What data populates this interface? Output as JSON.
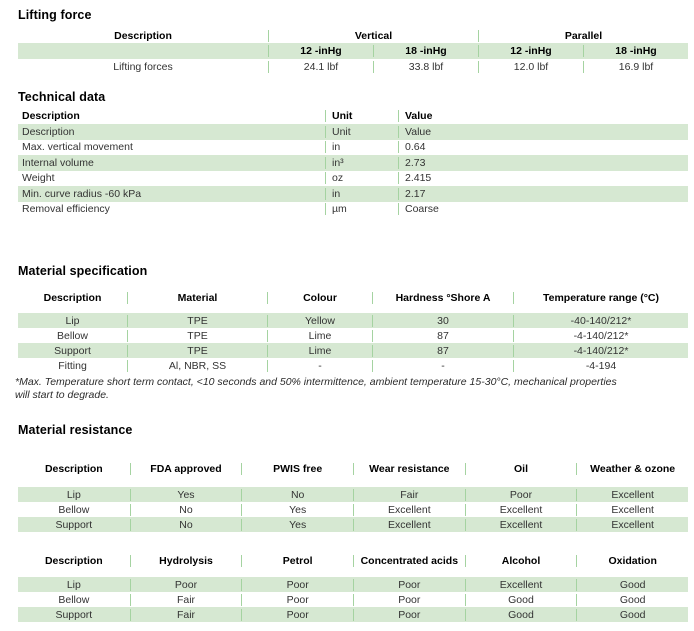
{
  "page": {
    "bg": "#ffffff",
    "band_green": "#d6e8d2",
    "line_green": "#a5d3a1",
    "text_color": "#333333"
  },
  "lifting_force": {
    "title": "Lifting force",
    "group_headers": [
      "Description",
      "Vertical",
      "Parallel"
    ],
    "sub_headers": [
      "",
      "12 -inHg",
      "18 -inHg",
      "12 -inHg",
      "18 -inHg"
    ],
    "rows": [
      {
        "cells": [
          "Lifting forces",
          "24.1 lbf",
          "33.8 lbf",
          "12.0 lbf",
          "16.9 lbf"
        ]
      }
    ]
  },
  "technical_data": {
    "title": "Technical data",
    "headers": [
      "Description",
      "Unit",
      "Value"
    ],
    "rows": [
      {
        "cells": [
          "Description",
          "Unit",
          "Value"
        ]
      },
      {
        "cells": [
          "Max. vertical movement",
          "in",
          "0.64"
        ]
      },
      {
        "cells": [
          "Internal volume",
          "in³",
          "2.73"
        ]
      },
      {
        "cells": [
          "Weight",
          "oz",
          "2.415"
        ]
      },
      {
        "cells": [
          "Min. curve radius -60 kPa",
          "in",
          "2.17"
        ]
      },
      {
        "cells": [
          "Removal efficiency",
          "µm",
          "Coarse"
        ]
      }
    ]
  },
  "material_specification": {
    "title": "Material specification",
    "headers": [
      "Description",
      "Material",
      "Colour",
      "Hardness °Shore A",
      "Temperature range (°C)"
    ],
    "rows": [
      {
        "cells": [
          "Lip",
          "TPE",
          "Yellow",
          "30",
          "-40-140/212*"
        ]
      },
      {
        "cells": [
          "Bellow",
          "TPE",
          "Lime",
          "87",
          "-4-140/212*"
        ]
      },
      {
        "cells": [
          "Support",
          "TPE",
          "Lime",
          "87",
          "-4-140/212*"
        ]
      },
      {
        "cells": [
          "Fitting",
          "Al, NBR, SS",
          "-",
          "-",
          "-4-194"
        ]
      }
    ],
    "footnote_line1": "*Max. Temperature short term contact, <10 seconds and 50% intermittence, ambient temperature 15-30°C, mechanical properties",
    "footnote_line2": "will start to degrade."
  },
  "material_resistance": {
    "title": "Material resistance",
    "table1": {
      "headers": [
        "Description",
        "FDA approved",
        "PWIS free",
        "Wear resistance",
        "Oil",
        "Weather & ozone"
      ],
      "rows": [
        {
          "cells": [
            "Lip",
            "Yes",
            "No",
            "Fair",
            "Poor",
            "Excellent"
          ]
        },
        {
          "cells": [
            "Bellow",
            "No",
            "Yes",
            "Excellent",
            "Excellent",
            "Excellent"
          ]
        },
        {
          "cells": [
            "Support",
            "No",
            "Yes",
            "Excellent",
            "Excellent",
            "Excellent"
          ]
        }
      ]
    },
    "table2": {
      "headers": [
        "Description",
        "Hydrolysis",
        "Petrol",
        "Concentrated acids",
        "Alcohol",
        "Oxidation"
      ],
      "rows": [
        {
          "cells": [
            "Lip",
            "Poor",
            "Poor",
            "Poor",
            "Excellent",
            "Good"
          ]
        },
        {
          "cells": [
            "Bellow",
            "Fair",
            "Poor",
            "Poor",
            "Good",
            "Good"
          ]
        },
        {
          "cells": [
            "Support",
            "Fair",
            "Poor",
            "Poor",
            "Good",
            "Good"
          ]
        }
      ]
    }
  }
}
